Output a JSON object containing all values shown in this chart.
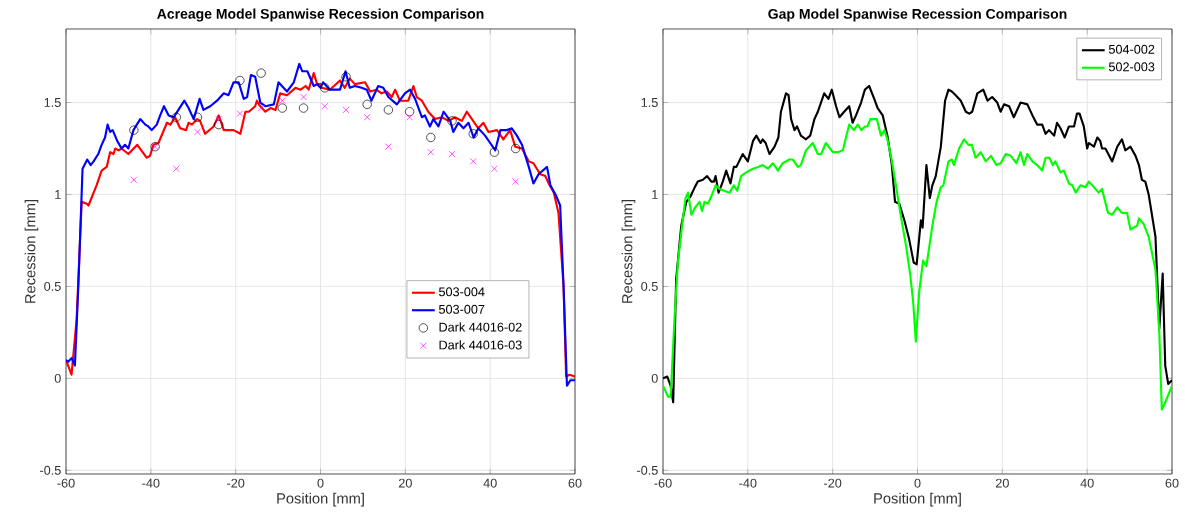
{
  "chart_data": [
    {
      "type": "line",
      "title": "Acreage Model Spanwise Recession Comparison",
      "xlabel": "Position [mm]",
      "ylabel": "Recession [mm]",
      "xlim": [
        -60,
        60
      ],
      "ylim": [
        -0.52,
        1.9
      ],
      "xticks": [
        -60,
        -40,
        -20,
        0,
        20,
        40,
        60
      ],
      "yticks": [
        -0.5,
        0,
        0.5,
        1,
        1.5
      ],
      "grid": true,
      "legend": "bottom right",
      "series": [
        {
          "name": "503-004",
          "color": "#ff0000",
          "marker": "none",
          "x": [
            -60.0,
            -58.7,
            -57.5,
            -56.3,
            -55.1,
            -54.7,
            -52.8,
            -51.6,
            -50.4,
            -49.6,
            -48.8,
            -48.4,
            -47.6,
            -46.9,
            -45.3,
            -43.2,
            -41.0,
            -40.2,
            -39.4,
            -38.2,
            -36.2,
            -35.4,
            -34.3,
            -33.1,
            -31.7,
            -31.1,
            -30.3,
            -29.1,
            -28.4,
            -27.2,
            -25.2,
            -24.0,
            -22.8,
            -20.5,
            -18.9,
            -17.7,
            -16.9,
            -15.4,
            -15.0,
            -14.2,
            -13.0,
            -11.8,
            -10.6,
            -9.5,
            -7.9,
            -5.9,
            -4.7,
            -3.5,
            -2.8,
            -1.6,
            -0.8,
            0.0,
            0.2,
            2.2,
            4.6,
            5.7,
            6.9,
            8.1,
            10.5,
            11.7,
            13.2,
            14.4,
            15.6,
            16.8,
            17.6,
            18.7,
            20.7,
            21.9,
            22.7,
            23.9,
            25.4,
            27.0,
            28.6,
            30.2,
            31.7,
            33.3,
            34.5,
            35.7,
            37.2,
            38.4,
            39.6,
            41.6,
            43.1,
            44.7,
            45.9,
            47.5,
            49.1,
            50.2,
            51.8,
            53.0,
            53.8,
            55.0,
            56.1,
            57.3,
            57.9,
            58.7,
            60.0
          ],
          "values": [
            0.1,
            0.02,
            0.32,
            0.96,
            0.95,
            0.94,
            1.05,
            1.13,
            1.15,
            1.23,
            1.22,
            1.25,
            1.24,
            1.25,
            1.22,
            1.27,
            1.2,
            1.21,
            1.27,
            1.28,
            1.39,
            1.38,
            1.42,
            1.36,
            1.35,
            1.39,
            1.38,
            1.41,
            1.4,
            1.33,
            1.37,
            1.43,
            1.35,
            1.35,
            1.33,
            1.45,
            1.45,
            1.48,
            1.51,
            1.48,
            1.45,
            1.47,
            1.46,
            1.55,
            1.54,
            1.58,
            1.57,
            1.59,
            1.57,
            1.66,
            1.6,
            1.6,
            1.58,
            1.57,
            1.62,
            1.58,
            1.63,
            1.6,
            1.61,
            1.56,
            1.57,
            1.55,
            1.56,
            1.53,
            1.57,
            1.51,
            1.51,
            1.59,
            1.53,
            1.51,
            1.45,
            1.41,
            1.42,
            1.4,
            1.42,
            1.4,
            1.45,
            1.41,
            1.36,
            1.39,
            1.34,
            1.35,
            1.3,
            1.35,
            1.26,
            1.25,
            1.18,
            1.17,
            1.11,
            1.1,
            1.06,
            1.01,
            0.9,
            0.5,
            0.01,
            0.02,
            0.01
          ]
        },
        {
          "name": "503-007",
          "color": "#0000ff",
          "marker": "none",
          "x": [
            -60.0,
            -59.5,
            -58.7,
            -57.9,
            -57.1,
            -56.1,
            -55.0,
            -54.2,
            -53.5,
            -52.4,
            -51.6,
            -50.8,
            -50.2,
            -49.6,
            -49.0,
            -47.9,
            -46.9,
            -46.1,
            -45.3,
            -44.1,
            -42.5,
            -41.3,
            -40.6,
            -39.8,
            -38.6,
            -37.8,
            -36.9,
            -35.8,
            -34.6,
            -33.5,
            -32.1,
            -31.1,
            -29.9,
            -28.5,
            -27.6,
            -26.0,
            -24.4,
            -22.8,
            -21.7,
            -20.5,
            -19.3,
            -18.1,
            -17.3,
            -16.4,
            -15.4,
            -14.2,
            -13.0,
            -11.0,
            -9.9,
            -9.1,
            -7.9,
            -6.3,
            -5.0,
            -4.3,
            -3.1,
            -1.6,
            -0.8,
            0.0,
            0.6,
            2.2,
            4.6,
            5.9,
            6.9,
            8.1,
            9.7,
            10.9,
            12.0,
            13.6,
            14.8,
            16.0,
            18.0,
            19.9,
            21.1,
            22.3,
            23.9,
            24.6,
            25.8,
            26.6,
            27.8,
            29.0,
            30.6,
            31.3,
            32.5,
            33.7,
            34.9,
            36.1,
            37.2,
            38.8,
            40.0,
            41.2,
            42.4,
            43.9,
            45.1,
            46.3,
            47.5,
            49.1,
            50.2,
            51.4,
            53.4,
            54.2,
            55.4,
            56.5,
            57.3,
            58.1,
            58.9,
            60.0
          ],
          "values": [
            0.1,
            0.09,
            0.11,
            0.07,
            0.5,
            1.14,
            1.19,
            1.16,
            1.18,
            1.22,
            1.27,
            1.31,
            1.38,
            1.34,
            1.35,
            1.29,
            1.25,
            1.27,
            1.25,
            1.35,
            1.41,
            1.38,
            1.37,
            1.35,
            1.38,
            1.43,
            1.48,
            1.43,
            1.42,
            1.46,
            1.51,
            1.47,
            1.41,
            1.52,
            1.46,
            1.48,
            1.51,
            1.55,
            1.54,
            1.61,
            1.61,
            1.52,
            1.53,
            1.65,
            1.64,
            1.5,
            1.48,
            1.49,
            1.61,
            1.59,
            1.56,
            1.61,
            1.71,
            1.67,
            1.67,
            1.59,
            1.6,
            1.58,
            1.61,
            1.57,
            1.57,
            1.67,
            1.58,
            1.59,
            1.58,
            1.57,
            1.51,
            1.59,
            1.58,
            1.53,
            1.49,
            1.55,
            1.57,
            1.52,
            1.42,
            1.43,
            1.37,
            1.41,
            1.37,
            1.45,
            1.4,
            1.34,
            1.39,
            1.36,
            1.39,
            1.31,
            1.36,
            1.32,
            1.28,
            1.24,
            1.35,
            1.35,
            1.36,
            1.32,
            1.27,
            1.15,
            1.06,
            1.11,
            1.15,
            1.05,
            1.0,
            0.94,
            0.5,
            -0.04,
            -0.01,
            -0.01
          ]
        },
        {
          "name": "Dark 44016-02",
          "color": "#000000",
          "type": "scatter",
          "marker": "circle",
          "x": [
            -44,
            -39,
            -34,
            -29,
            -24,
            -19,
            -14,
            -9,
            -4,
            1,
            6,
            11,
            16,
            21,
            26,
            31,
            36,
            41,
            46
          ],
          "values": [
            1.35,
            1.26,
            1.42,
            1.42,
            1.38,
            1.62,
            1.66,
            1.47,
            1.47,
            1.58,
            1.64,
            1.49,
            1.46,
            1.45,
            1.31,
            1.4,
            1.33,
            1.23,
            1.25
          ]
        },
        {
          "name": "Dark 44016-03",
          "color": "#ff00ff",
          "type": "scatter",
          "marker": "cross",
          "x": [
            -44,
            -39,
            -34,
            -29,
            -24,
            -19,
            -14,
            -9,
            -4,
            1,
            6,
            11,
            16,
            21,
            26,
            31,
            36,
            41,
            46
          ],
          "values": [
            1.08,
            1.26,
            1.14,
            1.34,
            1.41,
            1.44,
            1.47,
            1.51,
            1.53,
            1.48,
            1.46,
            1.42,
            1.26,
            1.42,
            1.23,
            1.22,
            1.18,
            1.14,
            1.07
          ]
        }
      ]
    },
    {
      "type": "line",
      "title": "Gap Model Spanwise Recession Comparison",
      "xlabel": "Position [mm]",
      "ylabel": "Recession [mm]",
      "xlim": [
        -60,
        60
      ],
      "ylim": [
        -0.52,
        1.9
      ],
      "xticks": [
        -60,
        -40,
        -20,
        0,
        20,
        40,
        60
      ],
      "yticks": [
        -0.5,
        0,
        0.5,
        1,
        1.5
      ],
      "grid": true,
      "legend": "top right",
      "series": [
        {
          "name": "504-002",
          "color": "#000000",
          "marker": "none",
          "x": [
            -60.0,
            -59.0,
            -58.2,
            -57.6,
            -56.9,
            -55.7,
            -54.5,
            -53.5,
            -52.5,
            -51.8,
            -50.6,
            -49.6,
            -48.6,
            -48.0,
            -47.6,
            -46.9,
            -45.9,
            -45.1,
            -44.1,
            -43.3,
            -42.7,
            -41.2,
            -40.0,
            -38.8,
            -38.0,
            -37.0,
            -36.5,
            -35.8,
            -34.9,
            -33.7,
            -32.8,
            -32.2,
            -31.0,
            -30.4,
            -29.8,
            -29.0,
            -28.4,
            -27.5,
            -26.3,
            -25.3,
            -24.3,
            -23.5,
            -22.0,
            -21.0,
            -20.2,
            -19.2,
            -18.4,
            -17.3,
            -16.1,
            -15.3,
            -14.5,
            -13.3,
            -12.4,
            -11.4,
            -10.2,
            -9.4,
            -8.2,
            -7.1,
            -6.1,
            -5.3,
            -4.3,
            -3.1,
            -2.0,
            -0.9,
            -0.2,
            0.8,
            1.2,
            2.1,
            2.9,
            3.5,
            4.3,
            5.5,
            6.5,
            7.3,
            8.1,
            9.0,
            10.2,
            11.4,
            12.2,
            12.9,
            14.1,
            15.5,
            16.5,
            17.6,
            18.8,
            19.6,
            20.4,
            21.6,
            22.7,
            24.3,
            25.9,
            27.1,
            28.2,
            29.4,
            30.2,
            31.0,
            32.2,
            32.9,
            33.7,
            34.7,
            35.7,
            36.9,
            37.6,
            38.2,
            39.2,
            40.0,
            40.4,
            41.6,
            42.4,
            43.1,
            43.5,
            44.3,
            45.9,
            47.1,
            48.2,
            49.0,
            50.2,
            51.4,
            52.2,
            52.9,
            53.7,
            54.5,
            56.1,
            57.0,
            57.8,
            58.4,
            59.1,
            60.0
          ],
          "values": [
            0.0,
            0.01,
            -0.04,
            -0.13,
            0.54,
            0.83,
            0.96,
            0.99,
            1.04,
            1.07,
            1.08,
            1.1,
            1.07,
            1.07,
            1.1,
            1.01,
            1.07,
            1.13,
            1.06,
            1.15,
            1.15,
            1.22,
            1.18,
            1.29,
            1.32,
            1.28,
            1.3,
            1.28,
            1.22,
            1.26,
            1.31,
            1.45,
            1.55,
            1.54,
            1.41,
            1.35,
            1.37,
            1.32,
            1.3,
            1.32,
            1.41,
            1.45,
            1.55,
            1.52,
            1.57,
            1.48,
            1.42,
            1.45,
            1.48,
            1.39,
            1.43,
            1.5,
            1.57,
            1.59,
            1.52,
            1.47,
            1.43,
            1.32,
            1.17,
            0.96,
            0.95,
            0.86,
            0.76,
            0.63,
            0.62,
            0.86,
            0.82,
            1.16,
            0.98,
            1.05,
            1.1,
            1.26,
            1.51,
            1.57,
            1.56,
            1.54,
            1.51,
            1.45,
            1.44,
            1.45,
            1.55,
            1.57,
            1.51,
            1.53,
            1.5,
            1.45,
            1.49,
            1.48,
            1.42,
            1.5,
            1.49,
            1.43,
            1.38,
            1.38,
            1.33,
            1.35,
            1.32,
            1.39,
            1.36,
            1.31,
            1.37,
            1.37,
            1.44,
            1.44,
            1.37,
            1.25,
            1.28,
            1.26,
            1.31,
            1.29,
            1.25,
            1.25,
            1.18,
            1.26,
            1.3,
            1.24,
            1.26,
            1.21,
            1.16,
            1.08,
            1.07,
            1.0,
            0.77,
            0.27,
            0.57,
            0.07,
            -0.03,
            -0.01
          ]
        },
        {
          "name": "502-003",
          "color": "#00ff00",
          "marker": "none",
          "x": [
            -60.0,
            -58.8,
            -58.2,
            -57.3,
            -56.5,
            -55.5,
            -54.7,
            -54.1,
            -53.3,
            -52.4,
            -51.4,
            -50.8,
            -50.2,
            -49.4,
            -48.6,
            -47.6,
            -46.7,
            -45.5,
            -44.3,
            -43.3,
            -42.5,
            -41.6,
            -40.4,
            -38.8,
            -37.6,
            -36.5,
            -35.3,
            -34.1,
            -32.9,
            -31.8,
            -30.2,
            -29.4,
            -28.2,
            -27.5,
            -26.3,
            -24.7,
            -23.5,
            -22.7,
            -21.6,
            -20.0,
            -18.8,
            -17.6,
            -16.1,
            -15.0,
            -14.1,
            -13.2,
            -12.4,
            -11.8,
            -11.1,
            -10.2,
            -9.6,
            -8.6,
            -7.8,
            -7.1,
            -6.1,
            -5.1,
            -3.9,
            -2.7,
            -1.7,
            -1.0,
            -0.4,
            0.4,
            1.3,
            2.1,
            3.5,
            4.5,
            5.5,
            6.1,
            7.3,
            8.1,
            8.6,
            9.8,
            11.0,
            12.0,
            12.8,
            13.7,
            14.9,
            16.1,
            17.3,
            18.6,
            19.6,
            20.8,
            22.0,
            23.3,
            24.3,
            25.1,
            25.9,
            27.1,
            28.2,
            29.4,
            30.2,
            31.1,
            31.9,
            32.5,
            33.7,
            34.5,
            35.7,
            36.5,
            37.3,
            38.4,
            39.6,
            40.4,
            41.6,
            42.7,
            43.5,
            44.9,
            45.9,
            47.1,
            48.2,
            49.4,
            50.2,
            51.8,
            52.2,
            53.3,
            54.5,
            56.1,
            57.0,
            57.6,
            58.6,
            60.0
          ],
          "values": [
            -0.04,
            -0.1,
            -0.1,
            0.32,
            0.63,
            0.83,
            0.98,
            1.01,
            0.89,
            0.93,
            0.96,
            0.91,
            0.96,
            0.95,
            0.99,
            1.05,
            1.03,
            1.02,
            1.01,
            1.05,
            1.02,
            1.1,
            1.12,
            1.14,
            1.15,
            1.16,
            1.14,
            1.17,
            1.13,
            1.17,
            1.19,
            1.19,
            1.15,
            1.16,
            1.24,
            1.28,
            1.22,
            1.22,
            1.28,
            1.23,
            1.23,
            1.24,
            1.38,
            1.35,
            1.38,
            1.35,
            1.37,
            1.37,
            1.41,
            1.41,
            1.41,
            1.32,
            1.35,
            1.3,
            1.19,
            1.05,
            0.88,
            0.72,
            0.56,
            0.41,
            0.2,
            0.47,
            0.64,
            0.61,
            0.83,
            0.96,
            1.04,
            1.05,
            1.18,
            1.19,
            1.16,
            1.25,
            1.3,
            1.27,
            1.27,
            1.2,
            1.23,
            1.18,
            1.21,
            1.16,
            1.17,
            1.22,
            1.21,
            1.17,
            1.23,
            1.16,
            1.22,
            1.18,
            1.16,
            1.13,
            1.2,
            1.2,
            1.16,
            1.18,
            1.12,
            1.13,
            1.06,
            1.05,
            1.01,
            1.05,
            1.04,
            1.07,
            1.04,
            1.01,
            1.03,
            0.9,
            0.89,
            0.93,
            0.9,
            0.9,
            0.81,
            0.83,
            0.87,
            0.84,
            0.77,
            0.59,
            0.25,
            -0.17,
            -0.12,
            -0.04
          ]
        }
      ]
    }
  ]
}
